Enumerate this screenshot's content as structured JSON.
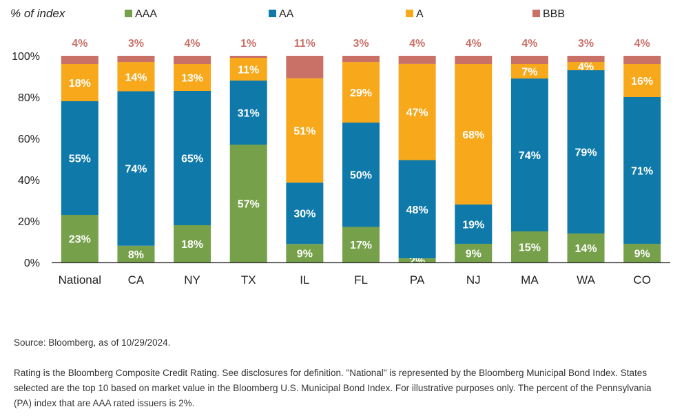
{
  "chart_data": {
    "type": "bar",
    "stacked": true,
    "ylabel": "% of index",
    "ylim": [
      0,
      100
    ],
    "yticks": [
      "0%",
      "20%",
      "40%",
      "60%",
      "80%",
      "100%"
    ],
    "grid": false,
    "legend_position": "top",
    "categories": [
      "National",
      "CA",
      "NY",
      "TX",
      "IL",
      "FL",
      "PA",
      "NJ",
      "MA",
      "WA",
      "CO"
    ],
    "series": [
      {
        "name": "AAA",
        "color": "#76a04a",
        "values": [
          23,
          8,
          18,
          57,
          9,
          17,
          2,
          9,
          15,
          14,
          9
        ]
      },
      {
        "name": "AA",
        "color": "#0f7aaa",
        "values": [
          55,
          74,
          65,
          31,
          30,
          50,
          48,
          19,
          74,
          79,
          71
        ]
      },
      {
        "name": "A",
        "color": "#f7a81b",
        "values": [
          18,
          14,
          13,
          11,
          51,
          29,
          47,
          68,
          7,
          4,
          16
        ]
      },
      {
        "name": "BBB",
        "color": "#c97167",
        "values": [
          4,
          3,
          4,
          1,
          11,
          3,
          4,
          4,
          4,
          3,
          4
        ]
      }
    ]
  },
  "notes": {
    "source": "Source: Bloomberg, as of 10/29/2024.",
    "disclaimer": "Rating is the Bloomberg Composite Credit Rating. See disclosures for definition. \"National\" is represented by the Bloomberg Municipal Bond Index. States selected are the top 10 based on market value in the Bloomberg U.S. Municipal Bond Index. For illustrative purposes only. The percent of the Pennsylvania (PA) index that are AAA rated issuers is 2%."
  }
}
